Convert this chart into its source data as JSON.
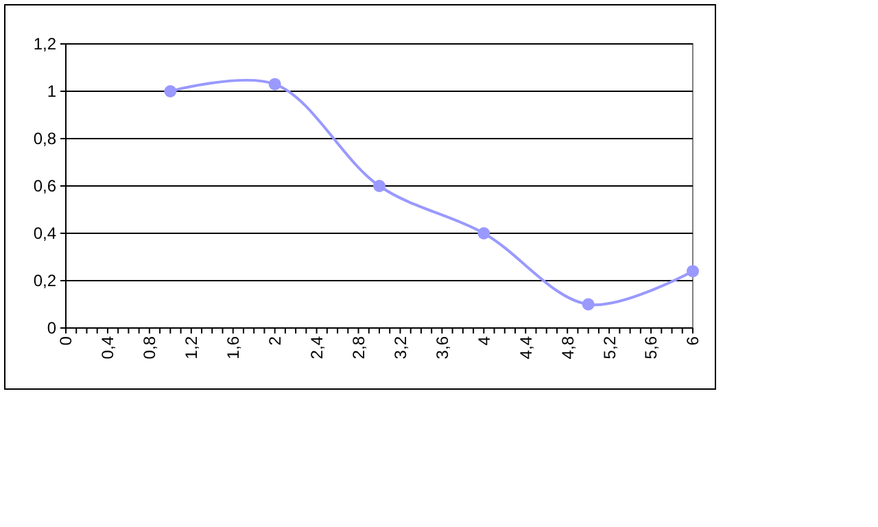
{
  "chart_data": {
    "type": "line",
    "x": [
      1,
      2,
      3,
      4,
      5,
      6
    ],
    "series": [
      {
        "color": "#9999ff",
        "values": [
          1,
          1.03,
          0.6,
          0.4,
          0.1,
          0.24
        ]
      }
    ],
    "xlim": [
      0,
      6
    ],
    "xticks": [
      0,
      {
        "value": 0.1,
        "label": null
      },
      {
        "value": 0.2,
        "label": null
      },
      {
        "value": 0.3,
        "label": null
      },
      {
        "value": 0.4,
        "label": "0,4"
      },
      {
        "value": 0.5,
        "label": null
      },
      {
        "value": 0.6,
        "label": null
      },
      {
        "value": 0.7,
        "label": null
      },
      {
        "value": 0.8,
        "label": "0,8"
      },
      {
        "value": 0.9,
        "label": null
      },
      {
        "value": 1,
        "label": null
      },
      {
        "value": 1.1,
        "label": null
      },
      {
        "value": 1.2,
        "label": "1,2"
      },
      {
        "value": 1.3,
        "label": null
      },
      {
        "value": 1.4,
        "label": null
      },
      {
        "value": 1.5,
        "label": null
      },
      {
        "value": 1.6,
        "label": "1,6"
      },
      {
        "value": 1.7,
        "label": null
      },
      {
        "value": 1.8,
        "label": null
      },
      {
        "value": 1.9,
        "label": null
      },
      2,
      {
        "value": 2.1,
        "label": null
      },
      {
        "value": 2.2,
        "label": null
      },
      {
        "value": 2.3,
        "label": null
      },
      {
        "value": 2.4,
        "label": "2,4"
      },
      {
        "value": 2.5,
        "label": null
      },
      {
        "value": 2.6,
        "label": null
      },
      {
        "value": 2.7,
        "label": null
      },
      {
        "value": 2.8,
        "label": "2,8"
      },
      {
        "value": 2.9,
        "label": null
      },
      {
        "value": 3,
        "label": null
      },
      {
        "value": 3.1,
        "label": null
      },
      {
        "value": 3.2,
        "label": "3,2"
      },
      {
        "value": 3.3,
        "label": null
      },
      {
        "value": 3.4,
        "label": null
      },
      {
        "value": 3.5,
        "label": null
      },
      {
        "value": 3.6,
        "label": "3,6"
      },
      {
        "value": 3.7,
        "label": null
      },
      {
        "value": 3.8,
        "label": null
      },
      {
        "value": 3.9,
        "label": null
      },
      4,
      {
        "value": 4.1,
        "label": null
      },
      {
        "value": 4.2,
        "label": null
      },
      {
        "value": 4.3,
        "label": null
      },
      {
        "value": 4.4,
        "label": "4,4"
      },
      {
        "value": 4.5,
        "label": null
      },
      {
        "value": 4.6,
        "label": null
      },
      {
        "value": 4.7,
        "label": null
      },
      {
        "value": 4.8,
        "label": "4,8"
      },
      {
        "value": 4.9,
        "label": null
      },
      {
        "value": 5,
        "label": null
      },
      {
        "value": 5.1,
        "label": null
      },
      {
        "value": 5.2,
        "label": "5,2"
      },
      {
        "value": 5.3,
        "label": null
      },
      {
        "value": 5.4,
        "label": null
      },
      {
        "value": 5.5,
        "label": null
      },
      {
        "value": 5.6,
        "label": "5,6"
      },
      {
        "value": 5.7,
        "label": null
      },
      {
        "value": 5.8,
        "label": null
      },
      {
        "value": 5.9,
        "label": null
      },
      6
    ],
    "ylim": [
      0,
      1.2
    ],
    "yticks": [
      0,
      {
        "value": 0.2,
        "label": "0,2"
      },
      {
        "value": 0.4,
        "label": "0,4"
      },
      {
        "value": 0.6,
        "label": "0,6"
      },
      {
        "value": 0.8,
        "label": "0,8"
      },
      1,
      {
        "value": 1.2,
        "label": "1,2"
      }
    ],
    "grid": "y",
    "marker": "circle",
    "line_style": "solid"
  }
}
